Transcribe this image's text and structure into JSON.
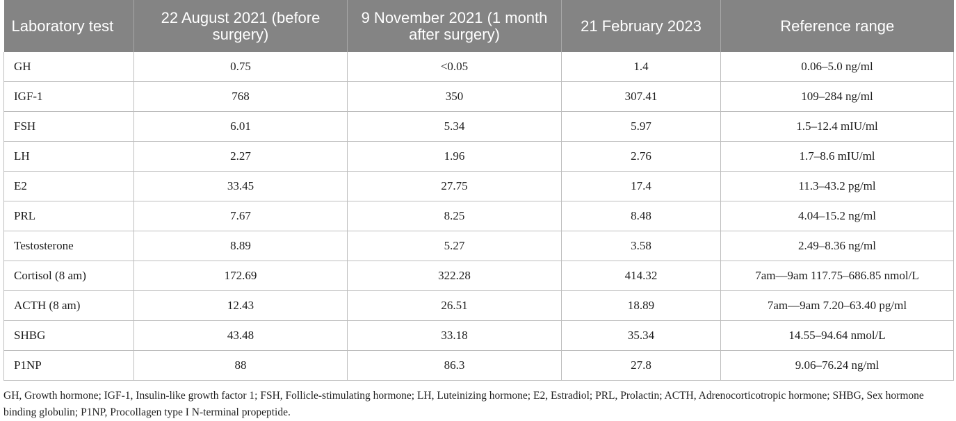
{
  "table": {
    "headers": [
      "Laboratory test",
      "22 August 2021 (before surgery)",
      "9 November 2021 (1 month after surgery)",
      "21 February 2023",
      "Reference range"
    ],
    "rows": [
      [
        "GH",
        "0.75",
        "<0.05",
        "1.4",
        "0.06–5.0 ng/ml"
      ],
      [
        "IGF-1",
        "768",
        "350",
        "307.41",
        "109–284 ng/ml"
      ],
      [
        "FSH",
        "6.01",
        "5.34",
        "5.97",
        "1.5–12.4 mIU/ml"
      ],
      [
        "LH",
        "2.27",
        "1.96",
        "2.76",
        "1.7–8.6 mIU/ml"
      ],
      [
        "E2",
        "33.45",
        "27.75",
        "17.4",
        "11.3–43.2 pg/ml"
      ],
      [
        "PRL",
        "7.67",
        "8.25",
        "8.48",
        "4.04–15.2 ng/ml"
      ],
      [
        "Testosterone",
        "8.89",
        "5.27",
        "3.58",
        "2.49–8.36 ng/ml"
      ],
      [
        "Cortisol (8 am)",
        "172.69",
        "322.28",
        "414.32",
        "7am—9am 117.75–686.85 nmol/L"
      ],
      [
        "ACTH (8 am)",
        "12.43",
        "26.51",
        "18.89",
        "7am—9am 7.20–63.40 pg/ml"
      ],
      [
        "SHBG",
        "43.48",
        "33.18",
        "35.34",
        "14.55–94.64 nmol/L"
      ],
      [
        "P1NP",
        "88",
        "86.3",
        "27.8",
        "9.06–76.24 ng/ml"
      ]
    ]
  },
  "footnote": "GH, Growth hormone; IGF-1, Insulin-like growth factor 1; FSH, Follicle-stimulating hormone; LH, Luteinizing hormone; E2, Estradiol; PRL, Prolactin; ACTH, Adrenocorticotropic hormone; SHBG, Sex hormone binding globulin; P1NP, Procollagen type I N-terminal propeptide."
}
